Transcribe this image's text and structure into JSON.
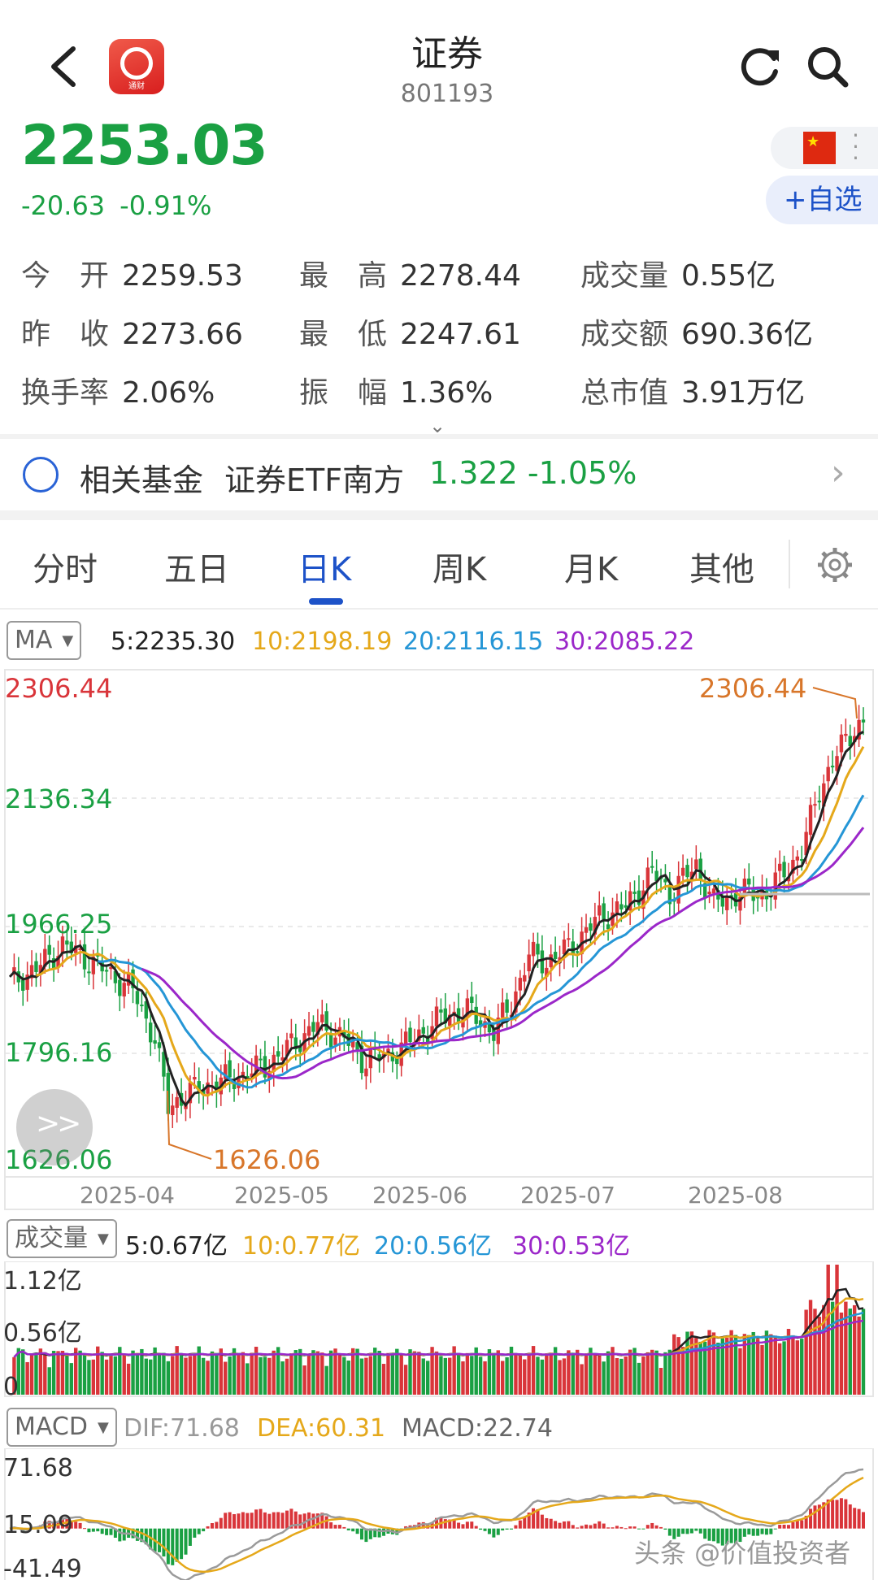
{
  "header": {
    "title": "证券",
    "code": "801193",
    "app_logo_text": "通财"
  },
  "quote": {
    "price": "2253.03",
    "change": "-20.63",
    "change_pct": "-0.91%",
    "add_watchlist": "+自选"
  },
  "stats": [
    {
      "label": "今　开",
      "value": "2259.53"
    },
    {
      "label": "最　高",
      "value": "2278.44"
    },
    {
      "label": "成交量",
      "value": "0.55亿"
    },
    {
      "label": "昨　收",
      "value": "2273.66"
    },
    {
      "label": "最　低",
      "value": "2247.61"
    },
    {
      "label": "成交额",
      "value": "690.36亿"
    },
    {
      "label": "换手率",
      "value": "2.06%"
    },
    {
      "label": "振　幅",
      "value": "1.36%"
    },
    {
      "label": "总市值",
      "value": "3.91万亿"
    }
  ],
  "related_fund": {
    "label": "相关基金",
    "name": "证券ETF南方",
    "price": "1.322",
    "change_pct": "-1.05%"
  },
  "tabs": [
    "分时",
    "五日",
    "日K",
    "周K",
    "月K",
    "其他"
  ],
  "active_tab": "日K",
  "kline": {
    "indicator": "MA",
    "ma5": "5:2235.30",
    "ma10": "10:2198.19",
    "ma20": "20:2116.15",
    "ma30": "30:2085.22",
    "y_ticks": [
      "2306.44",
      "2136.34",
      "1966.25",
      "1796.16",
      "1626.06"
    ],
    "high_label": "2306.44",
    "low_label": "1626.06",
    "x_ticks": [
      "2025-04",
      "2025-05",
      "2025-06",
      "2025-07",
      "2025-08"
    ]
  },
  "volume": {
    "indicator": "成交量",
    "ma5": "5:0.67亿",
    "ma10": "10:0.77亿",
    "ma20": "20:0.56亿",
    "ma30": "30:0.53亿",
    "y_ticks": [
      "1.12亿",
      "0.56亿",
      "0"
    ]
  },
  "macd": {
    "indicator": "MACD",
    "dif": "DIF:71.68",
    "dea": "DEA:60.31",
    "macd": "MACD:22.74",
    "y_ticks": [
      "71.68",
      "15.09",
      "-41.49"
    ]
  },
  "colors": {
    "up": "#d9353a",
    "down": "#1aa043",
    "ma5": "#222222",
    "ma10": "#e5a81a",
    "ma20": "#2596d6",
    "ma30": "#9b27c9",
    "accent": "#1d52c8"
  },
  "watermark": "头条 @价值投资者"
}
